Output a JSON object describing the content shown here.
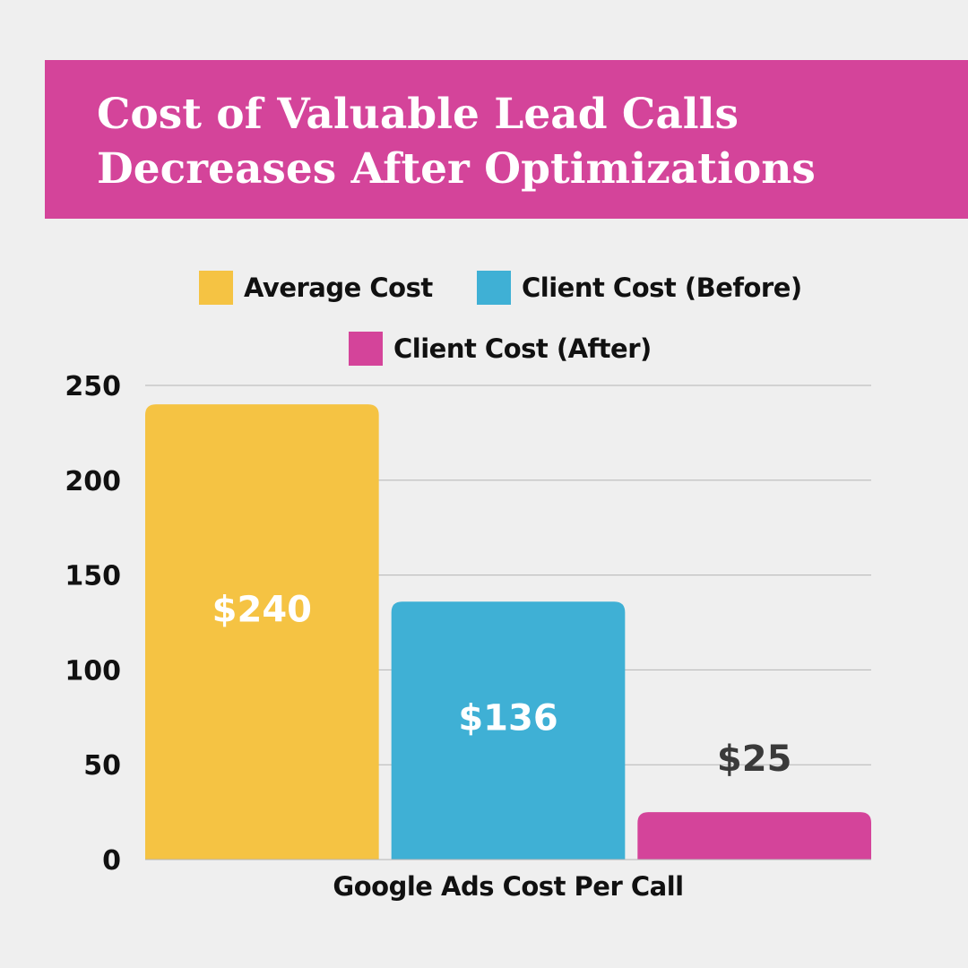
{
  "chart_data": {
    "type": "bar",
    "title": "Cost of Valuable Lead Calls Decreases After Optimizations",
    "title_lines": [
      "Cost of Valuable Lead Calls",
      "Decreases After Optimizations"
    ],
    "categories": [
      "Google Ads Cost Per Call"
    ],
    "xlabel": "Google Ads Cost Per Call",
    "ylabel": "",
    "ylim": [
      0,
      250
    ],
    "yticks": [
      0,
      50,
      100,
      150,
      200,
      250
    ],
    "grid": true,
    "legend_position": "top",
    "series": [
      {
        "name": "Average Cost",
        "values": [
          240
        ],
        "color": "#f5c343",
        "data_label": "$240",
        "label_color": "#ffffff"
      },
      {
        "name": "Client Cost (Before)",
        "values": [
          136
        ],
        "color": "#3fb0d5",
        "data_label": "$136",
        "label_color": "#ffffff"
      },
      {
        "name": "Client Cost (After)",
        "values": [
          25
        ],
        "color": "#d4449a",
        "data_label": "$25",
        "label_color": "#3a3a3a"
      }
    ]
  },
  "colors": {
    "background": "#efefef",
    "banner": "#d4449a",
    "gridline": "#b5b5b5"
  }
}
